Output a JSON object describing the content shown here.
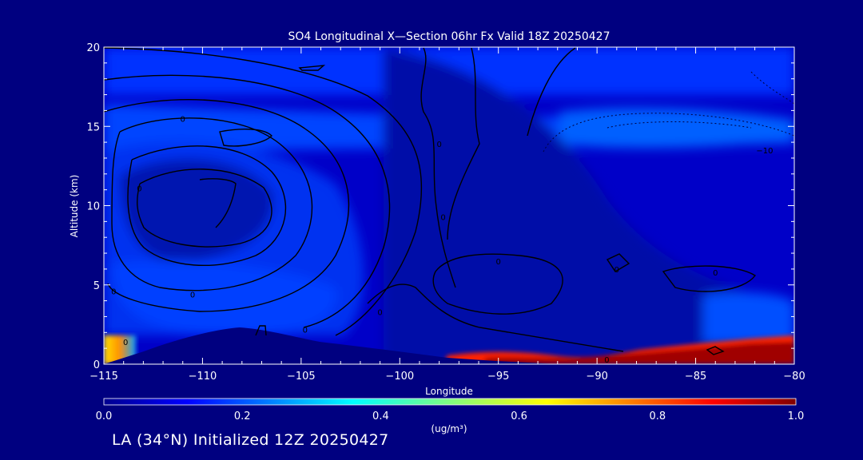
{
  "chart_data": {
    "type": "heatmap",
    "title": "SO4 Longitudinal X—Section 06hr  Fx Valid 18Z 20250427",
    "xlabel": "Longitude",
    "ylabel": "Altitude (km)",
    "xlim": [
      -115,
      -80
    ],
    "ylim": [
      0,
      20
    ],
    "x_ticks": [
      -115,
      -110,
      -105,
      -100,
      -95,
      -90,
      -85,
      -80
    ],
    "x_tick_labels": [
      "−115",
      "−110",
      "−105",
      "−100",
      "−95",
      "−90",
      "−85",
      "−80"
    ],
    "y_ticks": [
      0,
      5,
      10,
      15,
      20
    ],
    "y_tick_labels": [
      "0",
      "5",
      "10",
      "15",
      "20"
    ],
    "colorbar": {
      "min": 0.0,
      "max": 1.0,
      "ticks": [
        0.0,
        0.2,
        0.4,
        0.6,
        0.8,
        1.0
      ],
      "tick_labels": [
        "0.0",
        "0.2",
        "0.4",
        "0.6",
        "0.8",
        "1.0"
      ],
      "units": "(ug/m³)",
      "colormap": "jet"
    },
    "high_concentration_regions": [
      {
        "lon_range": [
          -97.5,
          -80
        ],
        "alt_range": [
          0,
          1.3
        ],
        "value": 1.0
      },
      {
        "lon_range": [
          -115,
          -113.5
        ],
        "alt_range": [
          0,
          1.3
        ],
        "value": 0.7
      }
    ],
    "contour_labels": [
      {
        "lon": -111,
        "alt": 15.5,
        "text": "0"
      },
      {
        "lon": -113.2,
        "alt": 11.1,
        "text": "0"
      },
      {
        "lon": -114.5,
        "alt": 4.6,
        "text": "0"
      },
      {
        "lon": -110.5,
        "alt": 4.4,
        "text": "0"
      },
      {
        "lon": -104.8,
        "alt": 2.2,
        "text": "0"
      },
      {
        "lon": -101,
        "alt": 3.3,
        "text": "0"
      },
      {
        "lon": -98,
        "alt": 13.9,
        "text": "0"
      },
      {
        "lon": -97.8,
        "alt": 9.3,
        "text": "0"
      },
      {
        "lon": -95,
        "alt": 6.5,
        "text": "0"
      },
      {
        "lon": -89,
        "alt": 6.0,
        "text": "0"
      },
      {
        "lon": -84,
        "alt": 5.8,
        "text": "0"
      },
      {
        "lon": -113.9,
        "alt": 1.4,
        "text": "0"
      },
      {
        "lon": -89.5,
        "alt": 0.3,
        "text": "0"
      },
      {
        "lon": -81.5,
        "alt": 13.5,
        "text": "−10"
      }
    ]
  },
  "footer_text": "LA (34°N) Initialized 12Z 20250427"
}
